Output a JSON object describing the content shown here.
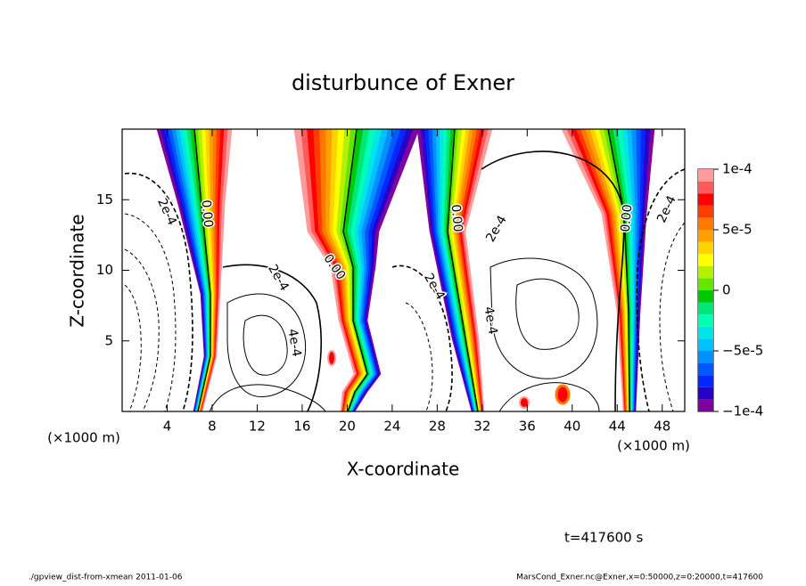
{
  "chart_data": {
    "type": "contour",
    "title": "disturbunce of Exner",
    "x_label": "X-coordinate",
    "y_label": "Z-coordinate",
    "x_unit": "(×1000 m)",
    "y_unit": "(×1000 m)",
    "xlim": [
      0,
      50
    ],
    "ylim": [
      0,
      20
    ],
    "xticks": [
      4,
      8,
      12,
      16,
      20,
      24,
      28,
      32,
      36,
      40,
      44,
      48
    ],
    "yticks": [
      5,
      10,
      15
    ],
    "contour_labels": [
      "2e-4",
      "0.00",
      "2e-4",
      "4e-4",
      "0.00",
      "2e-4",
      "0.00",
      "2e-4",
      "4e-4",
      "0.00",
      "2e-4"
    ],
    "colorbar": {
      "levels": [
        -0.0001,
        -9e-05,
        -8e-05,
        -7e-05,
        -6e-05,
        -5e-05,
        -4e-05,
        -3e-05,
        -2e-05,
        -1e-05,
        0,
        1e-05,
        2e-05,
        3e-05,
        4e-05,
        5e-05,
        6e-05,
        7e-05,
        8e-05,
        9e-05,
        0.0001
      ],
      "colors": [
        "#8000a0",
        "#2800c8",
        "#0028ff",
        "#0058ff",
        "#0090ff",
        "#00c0ff",
        "#00e6e6",
        "#00ffb4",
        "#00e678",
        "#00c800",
        "#64e600",
        "#b4f000",
        "#ffff00",
        "#ffd200",
        "#ffa000",
        "#ff7800",
        "#ff3c00",
        "#ff0000",
        "#ff5a5a",
        "#ff9b9b"
      ],
      "ticks": [
        {
          "value": -0.0001,
          "label": "−1e-4"
        },
        {
          "value": -5e-05,
          "label": "−5e-5"
        },
        0,
        {
          "value": 5e-05,
          "label": "5e-5"
        },
        {
          "value": 0.0001,
          "label": "1e-4"
        }
      ]
    },
    "time_label": "t=417600 s",
    "footer_left": "./gpview_dist-from-xmean  2011-01-06",
    "footer_right": "MarsCond_Exner.nc@Exner,x=0:50000,z=0:20000,t=417600"
  }
}
